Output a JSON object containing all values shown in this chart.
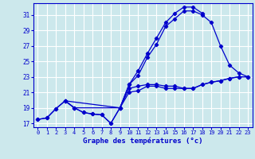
{
  "xlabel": "Graphe des températures (°c)",
  "bg_color": "#cce8ec",
  "grid_color": "#ffffff",
  "line_color": "#0000cc",
  "xlim": [
    -0.5,
    23.5
  ],
  "ylim": [
    16.5,
    32.5
  ],
  "yticks": [
    17,
    19,
    21,
    23,
    25,
    27,
    29,
    31
  ],
  "xticks": [
    0,
    1,
    2,
    3,
    4,
    5,
    6,
    7,
    8,
    9,
    10,
    11,
    12,
    13,
    14,
    15,
    16,
    17,
    18,
    19,
    20,
    21,
    22,
    23
  ],
  "line_min_x": [
    0,
    1,
    2,
    3,
    4,
    5,
    6,
    7,
    8,
    9,
    10,
    11,
    12,
    13,
    14,
    15,
    16,
    17,
    18,
    19,
    20,
    21,
    22,
    23
  ],
  "line_min_y": [
    17.5,
    17.7,
    18.9,
    19.9,
    19.0,
    18.4,
    18.2,
    18.1,
    17.0,
    19.0,
    21.0,
    21.2,
    21.8,
    21.8,
    21.5,
    21.5,
    21.5,
    21.5,
    22.0,
    22.3,
    22.5,
    22.8,
    23.0,
    23.0
  ],
  "line_avg_x": [
    0,
    1,
    2,
    3,
    4,
    5,
    6,
    7,
    8,
    9,
    10,
    11,
    12,
    13,
    14,
    15,
    16,
    17,
    18,
    19,
    20,
    21,
    22,
    23
  ],
  "line_avg_y": [
    17.5,
    17.7,
    18.9,
    19.9,
    19.0,
    18.4,
    18.2,
    18.1,
    17.0,
    19.0,
    22.0,
    23.2,
    25.5,
    27.2,
    29.5,
    30.5,
    31.5,
    31.5,
    31.0,
    30.0,
    27.0,
    24.5,
    23.5,
    23.0
  ],
  "line_top_x": [
    3,
    9,
    10,
    11,
    12,
    13,
    14,
    15,
    16,
    17,
    18
  ],
  "line_top_y": [
    19.9,
    19.0,
    22.0,
    23.8,
    26.0,
    28.0,
    30.0,
    31.2,
    32.0,
    32.0,
    31.2
  ],
  "line_mid_x": [
    3,
    4,
    9,
    10,
    11,
    12,
    13,
    14,
    15,
    16,
    17,
    18,
    19,
    20,
    21,
    22,
    23
  ],
  "line_mid_y": [
    19.9,
    19.0,
    19.0,
    21.5,
    21.8,
    22.0,
    22.0,
    21.8,
    21.8,
    21.5,
    21.5,
    22.0,
    22.3,
    22.5,
    22.8,
    23.0,
    23.0
  ]
}
